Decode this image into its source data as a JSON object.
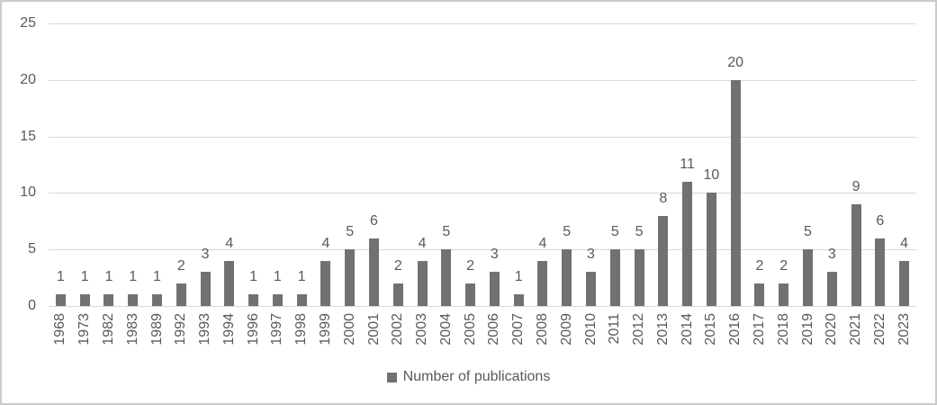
{
  "chart_data": {
    "type": "bar",
    "title": "",
    "series_name": "Number of publications",
    "categories": [
      "1968",
      "1973",
      "1982",
      "1983",
      "1989",
      "1992",
      "1993",
      "1994",
      "1996",
      "1997",
      "1998",
      "1999",
      "2000",
      "2001",
      "2002",
      "2003",
      "2004",
      "2005",
      "2006",
      "2007",
      "2008",
      "2009",
      "2010",
      "2011",
      "2012",
      "2013",
      "2014",
      "2015",
      "2016",
      "2017",
      "2018",
      "2019",
      "2020",
      "2021",
      "2022",
      "2023"
    ],
    "values": [
      1,
      1,
      1,
      1,
      1,
      2,
      3,
      4,
      1,
      1,
      1,
      4,
      5,
      6,
      2,
      4,
      5,
      2,
      3,
      1,
      4,
      5,
      3,
      5,
      5,
      8,
      11,
      10,
      20,
      2,
      2,
      5,
      3,
      9,
      6,
      4
    ],
    "xlabel": "",
    "ylabel": "",
    "ylim": [
      0,
      25
    ],
    "yticks": [
      0,
      5,
      10,
      15,
      20,
      25
    ],
    "grid": true,
    "data_labels": true,
    "legend_position": "bottom",
    "colors": {
      "bar": "#737070",
      "gridline": "#d9d9d9",
      "axis_line": "#d9d9d9",
      "tick_text": "#595959",
      "data_label_text": "#595959",
      "legend_text": "#595959",
      "border": "#cbcbcb"
    }
  },
  "legend": {
    "label": "Number of publications"
  }
}
